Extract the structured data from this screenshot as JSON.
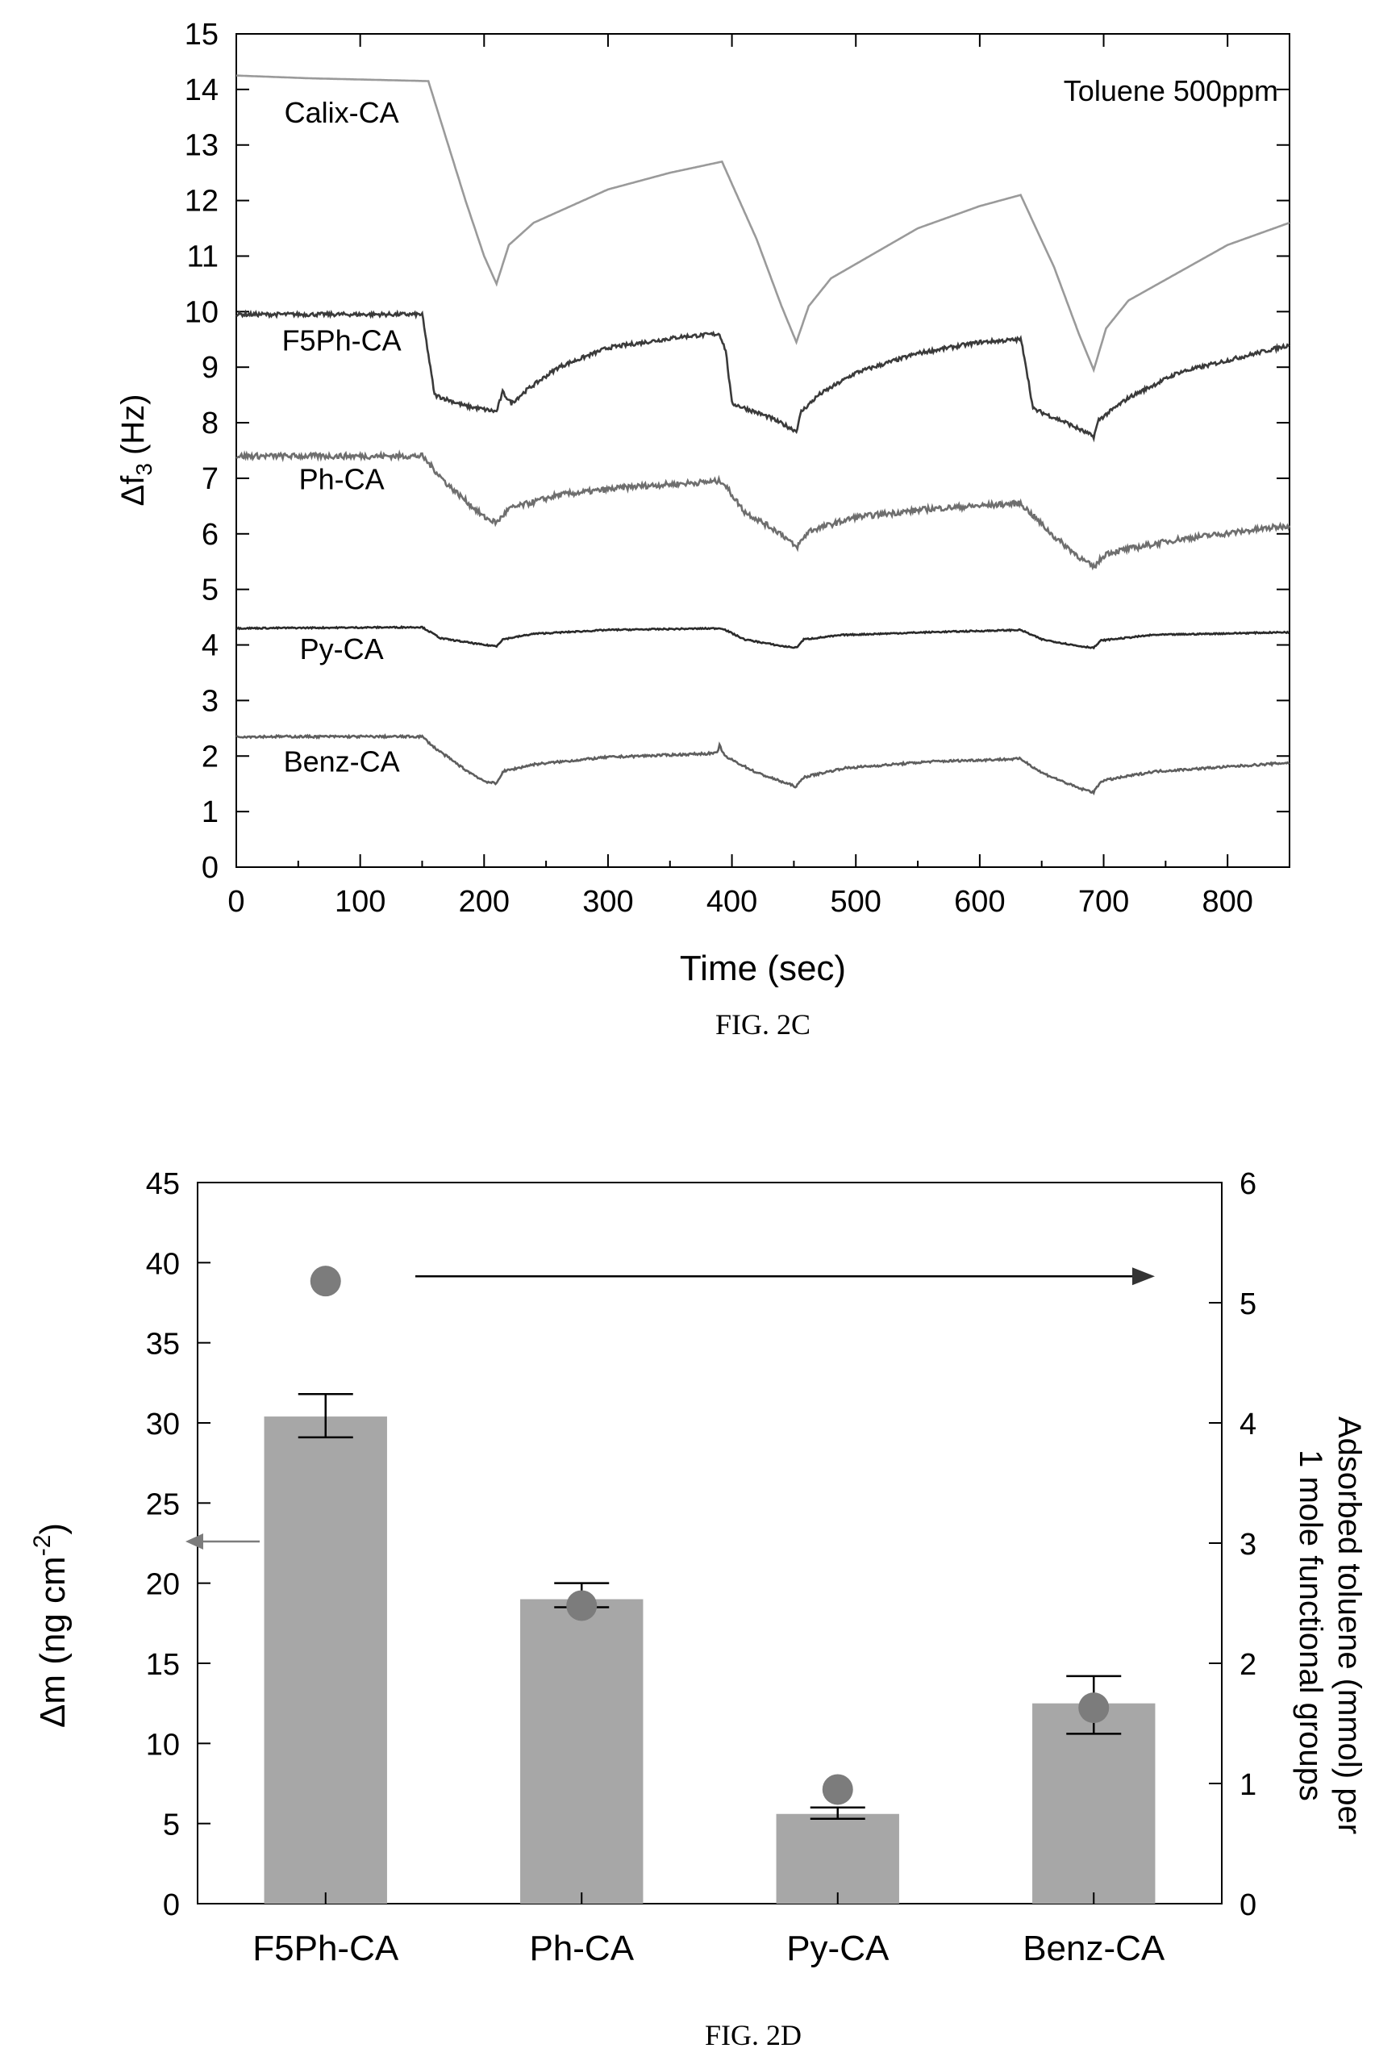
{
  "chart_data": [
    {
      "type": "line",
      "caption": "FIG. 2C",
      "xlabel": "Time (sec)",
      "ylabel_main": "Δf",
      "ylabel_sub": "3",
      "ylabel_unit": "(Hz)",
      "annotation": "Toluene 500ppm",
      "xlim": [
        0,
        850
      ],
      "ylim": [
        0,
        15
      ],
      "xticks": [
        "0",
        "100",
        "200",
        "300",
        "400",
        "500",
        "600",
        "700",
        "800"
      ],
      "yticks": [
        "0",
        "1",
        "2",
        "3",
        "4",
        "5",
        "6",
        "7",
        "8",
        "9",
        "10",
        "11",
        "12",
        "13",
        "14",
        "15"
      ],
      "series": [
        {
          "name": "Calix-CA",
          "color": "#9a9a9a",
          "noise": 0.0,
          "label_pos": [
            85,
            13.4
          ],
          "points": [
            [
              0,
              14.25
            ],
            [
              60,
              14.2
            ],
            [
              155,
              14.15
            ],
            [
              185,
              12.0
            ],
            [
              200,
              11.0
            ],
            [
              210,
              10.5
            ],
            [
              220,
              11.2
            ],
            [
              240,
              11.6
            ],
            [
              300,
              12.2
            ],
            [
              350,
              12.5
            ],
            [
              392,
              12.7
            ],
            [
              420,
              11.3
            ],
            [
              440,
              10.1
            ],
            [
              452,
              9.45
            ],
            [
              462,
              10.1
            ],
            [
              480,
              10.6
            ],
            [
              550,
              11.5
            ],
            [
              600,
              11.9
            ],
            [
              633,
              12.1
            ],
            [
              660,
              10.8
            ],
            [
              680,
              9.6
            ],
            [
              692,
              8.95
            ],
            [
              702,
              9.7
            ],
            [
              720,
              10.2
            ],
            [
              800,
              11.2
            ],
            [
              850,
              11.6
            ]
          ]
        },
        {
          "name": "F5Ph-CA",
          "color": "#3a3a3a",
          "noise": 0.035,
          "label_pos": [
            85,
            9.3
          ],
          "points": [
            [
              0,
              9.95
            ],
            [
              150,
              9.95
            ],
            [
              160,
              8.5
            ],
            [
              185,
              8.3
            ],
            [
              210,
              8.2
            ],
            [
              215,
              8.55
            ],
            [
              222,
              8.35
            ],
            [
              235,
              8.6
            ],
            [
              260,
              9.0
            ],
            [
              300,
              9.35
            ],
            [
              360,
              9.55
            ],
            [
              390,
              9.6
            ],
            [
              395,
              9.3
            ],
            [
              400,
              8.35
            ],
            [
              430,
              8.1
            ],
            [
              452,
              7.85
            ],
            [
              456,
              8.2
            ],
            [
              470,
              8.5
            ],
            [
              500,
              8.9
            ],
            [
              550,
              9.25
            ],
            [
              600,
              9.45
            ],
            [
              633,
              9.5
            ],
            [
              636,
              9.2
            ],
            [
              643,
              8.25
            ],
            [
              670,
              8.0
            ],
            [
              692,
              7.75
            ],
            [
              696,
              8.05
            ],
            [
              720,
              8.45
            ],
            [
              760,
              8.9
            ],
            [
              850,
              9.4
            ]
          ]
        },
        {
          "name": "Ph-CA",
          "color": "#6e6e6e",
          "noise": 0.05,
          "label_pos": [
            85,
            6.8
          ],
          "points": [
            [
              0,
              7.4
            ],
            [
              150,
              7.4
            ],
            [
              170,
              6.9
            ],
            [
              200,
              6.3
            ],
            [
              210,
              6.2
            ],
            [
              220,
              6.45
            ],
            [
              260,
              6.7
            ],
            [
              320,
              6.85
            ],
            [
              392,
              6.95
            ],
            [
              410,
              6.4
            ],
            [
              440,
              6.0
            ],
            [
              452,
              5.75
            ],
            [
              462,
              6.05
            ],
            [
              500,
              6.3
            ],
            [
              560,
              6.45
            ],
            [
              633,
              6.55
            ],
            [
              660,
              5.95
            ],
            [
              685,
              5.5
            ],
            [
              692,
              5.4
            ],
            [
              702,
              5.65
            ],
            [
              760,
              5.9
            ],
            [
              850,
              6.15
            ]
          ]
        },
        {
          "name": "Py-CA",
          "color": "#2a2a2a",
          "noise": 0.012,
          "label_pos": [
            85,
            3.75
          ],
          "points": [
            [
              0,
              4.3
            ],
            [
              150,
              4.32
            ],
            [
              165,
              4.12
            ],
            [
              200,
              4.0
            ],
            [
              210,
              3.98
            ],
            [
              215,
              4.1
            ],
            [
              240,
              4.2
            ],
            [
              300,
              4.27
            ],
            [
              392,
              4.3
            ],
            [
              410,
              4.1
            ],
            [
              440,
              3.98
            ],
            [
              452,
              3.95
            ],
            [
              458,
              4.1
            ],
            [
              490,
              4.18
            ],
            [
              560,
              4.23
            ],
            [
              633,
              4.27
            ],
            [
              650,
              4.1
            ],
            [
              680,
              3.98
            ],
            [
              692,
              3.95
            ],
            [
              698,
              4.08
            ],
            [
              740,
              4.18
            ],
            [
              850,
              4.23
            ]
          ]
        },
        {
          "name": "Benz-CA",
          "color": "#5e5e5e",
          "noise": 0.02,
          "label_pos": [
            85,
            1.72
          ],
          "points": [
            [
              0,
              2.35
            ],
            [
              150,
              2.35
            ],
            [
              160,
              2.15
            ],
            [
              185,
              1.75
            ],
            [
              200,
              1.55
            ],
            [
              210,
              1.5
            ],
            [
              215,
              1.72
            ],
            [
              240,
              1.85
            ],
            [
              300,
              1.98
            ],
            [
              388,
              2.05
            ],
            [
              390,
              2.2
            ],
            [
              394,
              2.0
            ],
            [
              420,
              1.7
            ],
            [
              445,
              1.5
            ],
            [
              452,
              1.45
            ],
            [
              458,
              1.62
            ],
            [
              490,
              1.78
            ],
            [
              560,
              1.9
            ],
            [
              633,
              1.95
            ],
            [
              650,
              1.7
            ],
            [
              680,
              1.42
            ],
            [
              692,
              1.35
            ],
            [
              698,
              1.55
            ],
            [
              740,
              1.72
            ],
            [
              850,
              1.88
            ]
          ]
        }
      ]
    },
    {
      "type": "bar",
      "caption": "FIG. 2D",
      "categories": [
        "F5Ph-CA",
        "Ph-CA",
        "Py-CA",
        "Benz-CA"
      ],
      "ylabel_left_main": "Δm (ng cm",
      "ylabel_left_sup": "-2",
      "ylabel_left_end": ")",
      "ylabel_right_line1": "Adsorbed toluene (mmol) per",
      "ylabel_right_line2": "1 mole functional groups",
      "ylim_left": [
        0,
        45
      ],
      "ylim_right": [
        0,
        6
      ],
      "yticks_left": [
        "0",
        "5",
        "10",
        "15",
        "20",
        "25",
        "30",
        "35",
        "40",
        "45"
      ],
      "yticks_right": [
        "0",
        "1",
        "2",
        "3",
        "4",
        "5",
        "6"
      ],
      "bar_color": "#a7a7a7",
      "dot_color": "#7c7c7c",
      "bars": [
        {
          "category": "F5Ph-CA",
          "value": 30.4,
          "err_high": 31.8,
          "err_low": 29.1
        },
        {
          "category": "Ph-CA",
          "value": 19.0,
          "err_high": 20.0,
          "err_low": 18.5
        },
        {
          "category": "Py-CA",
          "value": 5.6,
          "err_high": 6.0,
          "err_low": 5.3
        },
        {
          "category": "Benz-CA",
          "value": 12.5,
          "err_high": 14.2,
          "err_low": 10.6
        }
      ],
      "dots": [
        {
          "category": "F5Ph-CA",
          "value": 5.18
        },
        {
          "category": "Ph-CA",
          "value": 2.48
        },
        {
          "category": "Py-CA",
          "value": 0.95
        },
        {
          "category": "Benz-CA",
          "value": 1.63
        }
      ],
      "arrow_left_at": 22.6,
      "arrow_right_at": 5.22
    }
  ]
}
